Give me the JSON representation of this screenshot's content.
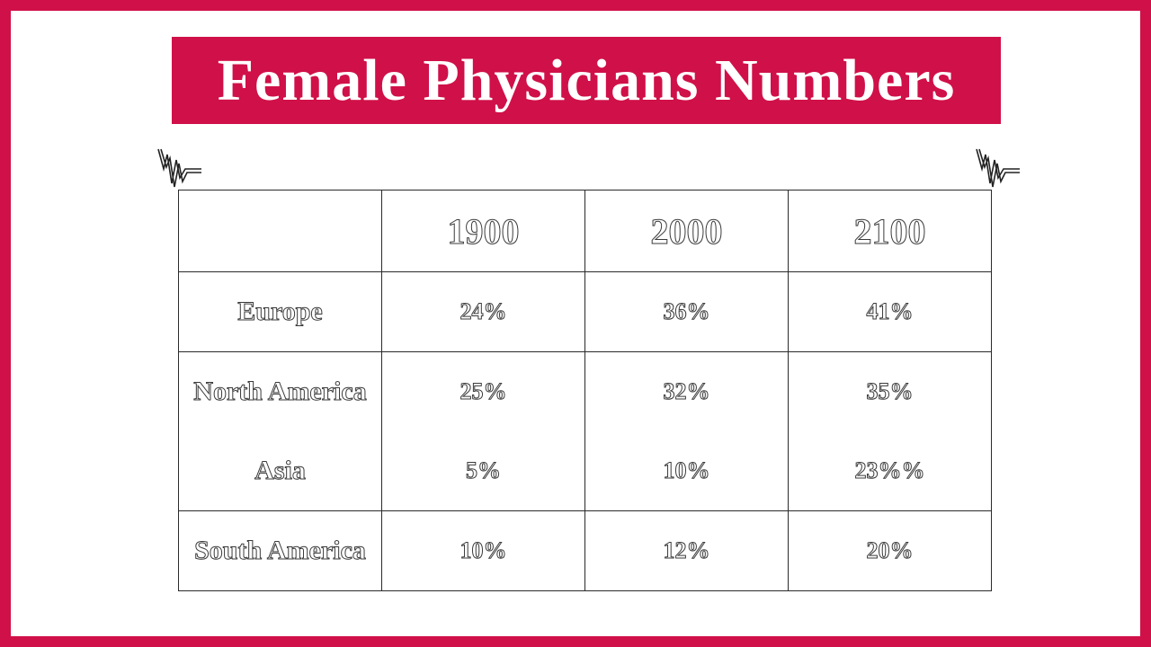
{
  "title": "Female Physicians Numbers",
  "colors": {
    "accent": "#d01048",
    "background": "#ffffff"
  },
  "icons": {
    "left_decoration": "zigzag-icon",
    "right_decoration": "zigzag-icon"
  },
  "table": {
    "columns": [
      "",
      "1900",
      "2000",
      "2100"
    ],
    "rows": [
      {
        "region": "Europe",
        "values": [
          "24%",
          "36%",
          "41%"
        ]
      },
      {
        "region": "North America",
        "values": [
          "25%",
          "32%",
          "35%"
        ]
      },
      {
        "region": "Asia",
        "values": [
          "5%",
          "10%",
          "23%%"
        ]
      },
      {
        "region": "South America",
        "values": [
          "10%",
          "12%",
          "20%"
        ]
      }
    ]
  }
}
